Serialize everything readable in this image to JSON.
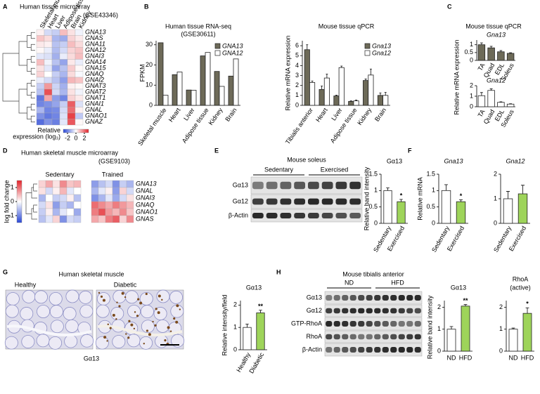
{
  "figure": {
    "panel_letters": [
      "A",
      "B",
      "C",
      "D",
      "E",
      "F",
      "G",
      "H"
    ],
    "panel_c": {
      "title": "Mouse tissue qPCR",
      "ylabel": "Relative mRNA expression"
    },
    "panel_e": {
      "title": "Mouse soleus",
      "groups": [
        "Sedentary",
        "Exercised"
      ],
      "rows": [
        "Gα13",
        "Gα12",
        "β-Actin"
      ]
    },
    "panel_f": {
      "ylabel": "Relative mRNA"
    },
    "panel_g": {
      "title": "Human skeletal muscle",
      "images": [
        "Healthy",
        "Diabetic"
      ],
      "caption": "Gα13",
      "caption_color": "#9b2d2d"
    },
    "panel_h": {
      "title": "Mouse tibialis anterior",
      "groups": [
        "ND",
        "HFD"
      ],
      "rows": [
        "Gα13",
        "Gα12",
        "GTP-RhoA",
        "RhoA",
        "β-Actin"
      ],
      "ylabel": "Relative band intensity"
    }
  },
  "chart_data": [
    {
      "type": "heatmap",
      "title": "Human tissue microarray",
      "subtitle": "(GSE43346)",
      "columns": [
        "Skeletal muscle",
        "Heart",
        "Liver",
        "Adipose tissue",
        "Brain",
        "Kidney"
      ],
      "rows": [
        "GNA13",
        "GNAS",
        "GNA11",
        "GNA12",
        "GNAI3",
        "GNA14",
        "GNA15",
        "GNAQ",
        "GNAI2",
        "GNAT3",
        "GNAT2",
        "GNAT1",
        "GNAI1",
        "GNAL",
        "GNAO1",
        "GNAZ"
      ],
      "values": [
        [
          0.2,
          -0.6,
          -0.8,
          0.9,
          0.4,
          -0.2
        ],
        [
          0.8,
          0.5,
          -1.2,
          -1.4,
          0.6,
          0.3
        ],
        [
          0.3,
          0.2,
          -1.0,
          -0.8,
          0.9,
          0.5
        ],
        [
          0.1,
          -0.3,
          -1.1,
          -0.6,
          0.6,
          0.8
        ],
        [
          -0.4,
          -0.5,
          -1.3,
          -0.3,
          0.5,
          0.9
        ],
        [
          0.9,
          -0.2,
          -1.0,
          -1.5,
          0.3,
          -0.3
        ],
        [
          0.4,
          -0.4,
          -1.5,
          -1.0,
          0.7,
          0.1
        ],
        [
          0.6,
          0.0,
          -0.8,
          -1.2,
          0.5,
          -0.1
        ],
        [
          -0.3,
          -0.6,
          -1.0,
          -1.6,
          1.0,
          0.8
        ],
        [
          -0.8,
          1.4,
          -0.7,
          -1.3,
          0.2,
          0.1
        ],
        [
          -1.0,
          2.4,
          -0.6,
          -1.2,
          0.4,
          -0.2
        ],
        [
          -2.2,
          1.2,
          -1.6,
          -2.0,
          0.6,
          0.3
        ],
        [
          -2.0,
          -1.8,
          -1.5,
          -0.8,
          2.2,
          -0.5
        ],
        [
          -1.2,
          -2.0,
          -1.9,
          -0.6,
          2.0,
          0.2
        ],
        [
          -1.8,
          -2.2,
          -2.0,
          -0.5,
          2.6,
          -0.9
        ],
        [
          -2.4,
          -1.8,
          -2.1,
          -0.4,
          2.3,
          0.1
        ]
      ],
      "clim": [
        -3,
        3
      ],
      "colorbar_ticks": [
        -2,
        0,
        2
      ],
      "colorbar_label": [
        "Relative",
        "expression (log₃)"
      ],
      "colors": [
        "#2a48d6",
        "#ffffff",
        "#e3242b"
      ],
      "highlight_rows": [
        0
      ],
      "highlight_color": "#e3242b"
    },
    {
      "type": "bar",
      "title": "Human tissue RNA-seq",
      "subtitle": "(GSE30611)",
      "ylabel": "FPKM",
      "categories": [
        "Skeletal muscle",
        "Heart",
        "Liver",
        "Adipose tissue",
        "Kidney",
        "Brain"
      ],
      "series": [
        {
          "name": "GNA13",
          "color": "#6d6a58",
          "values": [
            31,
            15.2,
            7.6,
            24.5,
            16.8,
            14.5
          ]
        },
        {
          "name": "GNA12",
          "color": "#ffffff",
          "values": [
            5,
            16.5,
            7.5,
            26.2,
            9.4,
            23
          ]
        }
      ],
      "ylim": [
        0,
        32
      ],
      "yticks": [
        0,
        10,
        20,
        30
      ],
      "legend": "upper right",
      "legend_italic": true
    },
    {
      "type": "bar",
      "title": "Mouse tissue qPCR",
      "ylabel": "Relative mRNA expression",
      "categories": [
        "Tibialis anterior",
        "Heart",
        "Liver",
        "Adipose tissue",
        "Kidney",
        "Brain"
      ],
      "series": [
        {
          "name": "Gna13",
          "color": "#6d6a58",
          "values": [
            5.6,
            1.6,
            0.95,
            0.4,
            2.5,
            1.0
          ],
          "errors": [
            0.5,
            0.35,
            0.08,
            0.05,
            0.15,
            0.25
          ]
        },
        {
          "name": "Gna12",
          "color": "#ffffff",
          "values": [
            2.3,
            2.75,
            3.8,
            0.45,
            3.05,
            1.0
          ],
          "errors": [
            0.15,
            0.4,
            0.15,
            0.08,
            0.6,
            0.3
          ]
        }
      ],
      "ylim": [
        0,
        6.5
      ],
      "yticks": [
        0,
        1,
        2,
        3,
        4,
        5,
        6
      ],
      "legend": "upper right",
      "legend_italic": true
    },
    {
      "type": "bar",
      "title": "Gna13",
      "title_italic": true,
      "categories": [
        "TA",
        "Quad",
        "EDL",
        "Soleus"
      ],
      "series": [
        {
          "color": "#6d6a58",
          "values": [
            1.0,
            0.8,
            0.55,
            0.45
          ],
          "errors": [
            0.12,
            0.1,
            0.08,
            0.04
          ]
        }
      ],
      "ylim": [
        0,
        1.3
      ],
      "yticks": [
        0,
        0.5,
        1
      ]
    },
    {
      "type": "bar",
      "title": "Gna12",
      "title_italic": true,
      "categories": [
        "TA",
        "Quad",
        "EDL",
        "Soleus"
      ],
      "series": [
        {
          "color": "#ffffff",
          "values": [
            1.05,
            1.55,
            0.42,
            0.25
          ],
          "errors": [
            0.3,
            0.15,
            0.05,
            0.04
          ]
        }
      ],
      "ylim": [
        0,
        2
      ],
      "yticks": [
        0,
        1,
        2
      ]
    },
    {
      "type": "heatmap",
      "title": "Human skeletal muscle microarray",
      "subtitle": "(GSE9103)",
      "groups": [
        "Sedentary",
        "Trained"
      ],
      "rows": [
        "GNA13",
        "GNAL",
        "GNAI3",
        "GNAQ",
        "GNAO1",
        "GNAS"
      ],
      "values": [
        [
          0.3,
          0.6,
          0.2,
          0.8,
          0.4,
          0.5,
          -0.8,
          -0.5,
          -0.3,
          -0.9,
          -0.4,
          -0.6
        ],
        [
          0.2,
          -0.3,
          0.1,
          0.5,
          -0.2,
          0.0,
          -0.6,
          -0.2,
          0.1,
          -0.8,
          0.3,
          -0.3
        ],
        [
          -0.6,
          0.0,
          -0.4,
          -0.3,
          0.1,
          -0.5,
          -0.9,
          -0.6,
          -0.2,
          -0.7,
          -0.3,
          0.2
        ],
        [
          -0.3,
          0.2,
          -0.8,
          -0.4,
          -0.6,
          0.0,
          1.0,
          0.8,
          0.6,
          0.9,
          0.7,
          0.5
        ],
        [
          -0.4,
          0.1,
          -0.6,
          -0.2,
          0.0,
          -0.7,
          0.9,
          1.2,
          0.7,
          0.5,
          0.8,
          0.4
        ],
        [
          -0.5,
          -0.2,
          0.3,
          -0.9,
          -0.3,
          -0.4,
          0.6,
          0.4,
          0.9,
          1.1,
          0.3,
          0.8
        ]
      ],
      "clim": [
        -1.5,
        1.5
      ],
      "colorbar_ticks": [
        -1,
        0,
        1
      ],
      "colorbar_label": "log fold change",
      "colors": [
        "#2a48d6",
        "#ffffff",
        "#e3242b"
      ],
      "highlight_rows": [
        0
      ],
      "highlight_color": "#e3242b"
    },
    {
      "type": "bar",
      "title": "Gα13",
      "ylabel": "Relative band intensity",
      "categories": [
        "Sedentary",
        "Exercised"
      ],
      "series": [
        {
          "colors": [
            "#ffffff",
            "#9ed45a"
          ],
          "values": [
            1.0,
            0.66
          ],
          "errors": [
            0.08,
            0.07
          ]
        }
      ],
      "significance": [
        null,
        "*"
      ],
      "ylim": [
        0,
        1.5
      ],
      "yticks": [
        0,
        0.5,
        1,
        1.5
      ]
    },
    {
      "type": "bar",
      "title": "Gna13",
      "title_italic": true,
      "categories": [
        "Sedentary",
        "Exercised"
      ],
      "series": [
        {
          "colors": [
            "#ffffff",
            "#9ed45a"
          ],
          "values": [
            1.0,
            0.66
          ],
          "errors": [
            0.18,
            0.06
          ]
        }
      ],
      "significance": [
        null,
        "*"
      ],
      "ylim": [
        0,
        1.5
      ],
      "yticks": [
        0,
        0.5,
        1,
        1.5
      ]
    },
    {
      "type": "bar",
      "title": "Gna12",
      "title_italic": true,
      "categories": [
        "Sedentary",
        "Exercised"
      ],
      "series": [
        {
          "colors": [
            "#ffffff",
            "#9ed45a"
          ],
          "values": [
            1.0,
            1.2
          ],
          "errors": [
            0.3,
            0.35
          ]
        }
      ],
      "ylim": [
        0,
        2
      ],
      "yticks": [
        0,
        1,
        2
      ]
    },
    {
      "type": "bar",
      "title": "Gα13",
      "ylabel": "Relative intensity/field",
      "categories": [
        "Healthy",
        "Diabetic"
      ],
      "series": [
        {
          "colors": [
            "#ffffff",
            "#9ed45a"
          ],
          "values": [
            1.0,
            1.65
          ],
          "errors": [
            0.15,
            0.12
          ]
        }
      ],
      "significance": [
        null,
        "**"
      ],
      "ylim": [
        0,
        2.2
      ],
      "yticks": [
        0,
        1,
        2
      ]
    },
    {
      "type": "bar",
      "title": "Gα13",
      "categories": [
        "ND",
        "HFD"
      ],
      "series": [
        {
          "colors": [
            "#ffffff",
            "#9ed45a"
          ],
          "values": [
            1.0,
            2.05
          ],
          "errors": [
            0.12,
            0.07
          ]
        }
      ],
      "significance": [
        null,
        "**"
      ],
      "ylim": [
        0,
        2.3
      ],
      "yticks": [
        0,
        1,
        2
      ]
    },
    {
      "type": "bar",
      "title": "RhoA",
      "subtitle": "(active)",
      "categories": [
        "ND",
        "HFD"
      ],
      "series": [
        {
          "colors": [
            "#ffffff",
            "#9ed45a"
          ],
          "values": [
            1.0,
            1.72
          ],
          "errors": [
            0.05,
            0.25
          ]
        }
      ],
      "significance": [
        null,
        "*"
      ],
      "ylim": [
        0,
        2.3
      ],
      "yticks": [
        0,
        1,
        2
      ]
    }
  ]
}
